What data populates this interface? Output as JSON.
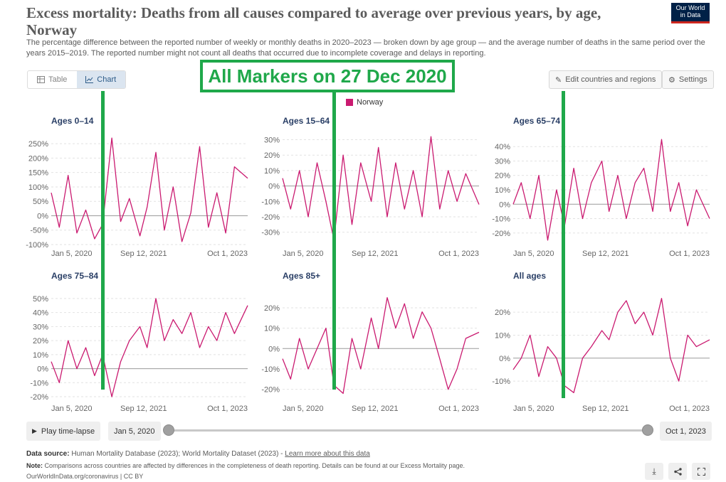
{
  "header": {
    "title": "Excess mortality: Deaths from all causes compared to average over previous years, by age, Norway",
    "subtitle": "The percentage difference between the reported number of weekly or monthly deaths in 2020–2023 — broken down by age group — and the average number of deaths in the same period over the years 2015–2019. The reported number might not count all deaths that occurred due to incomplete coverage and delays in reporting.",
    "logo_line1": "Our World",
    "logo_line2": "in Data"
  },
  "toolbar": {
    "table_label": "Table",
    "chart_label": "Chart",
    "edit_label": "Edit countries and regions",
    "settings_label": "Settings"
  },
  "annotation": {
    "banner": "All Markers on 27 Dec 2020",
    "marker_date": "2020-12-27"
  },
  "legend": {
    "label": "Norway",
    "color": "#ca1a70"
  },
  "chart_data": [
    {
      "type": "line",
      "title": "Ages 0–14",
      "ylim": [
        -100,
        280
      ],
      "yticks": [
        -100,
        -50,
        0,
        50,
        100,
        150,
        200,
        250
      ],
      "ytick_labels": [
        "-100%",
        "-50%",
        "0%",
        "50%",
        "100%",
        "150%",
        "200%",
        "250%"
      ],
      "x_range": [
        "2020-01-05",
        "2023-10-01"
      ],
      "xtick_labels": [
        "Jan 5, 2020",
        "Sep 12, 2021",
        "Oct 1, 2023"
      ],
      "series": [
        {
          "name": "Norway",
          "color": "#ca1a70",
          "x": [
            "2020-01-05",
            "2020-03-01",
            "2020-05-01",
            "2020-07-01",
            "2020-09-01",
            "2020-11-01",
            "2020-12-27",
            "2021-03-01",
            "2021-05-01",
            "2021-07-01",
            "2021-09-12",
            "2021-11-01",
            "2022-01-01",
            "2022-03-01",
            "2022-05-01",
            "2022-07-01",
            "2022-09-01",
            "2022-11-01",
            "2023-01-01",
            "2023-03-01",
            "2023-05-01",
            "2023-07-01",
            "2023-10-01"
          ],
          "values": [
            80,
            -40,
            140,
            -60,
            20,
            -80,
            -30,
            270,
            -20,
            60,
            -70,
            30,
            220,
            -50,
            100,
            -90,
            10,
            240,
            -40,
            80,
            -60,
            170,
            130
          ]
        }
      ]
    },
    {
      "type": "line",
      "title": "Ages 15–64",
      "ylim": [
        -38,
        33
      ],
      "yticks": [
        -30,
        -20,
        -10,
        0,
        10,
        20,
        30
      ],
      "ytick_labels": [
        "-30%",
        "-20%",
        "-10%",
        "0%",
        "10%",
        "20%",
        "30%"
      ],
      "x_range": [
        "2020-01-05",
        "2023-10-01"
      ],
      "xtick_labels": [
        "Jan 5, 2020",
        "Sep 12, 2021",
        "Oct 1, 2023"
      ],
      "series": [
        {
          "name": "Norway",
          "color": "#ca1a70",
          "x": [
            "2020-01-05",
            "2020-03-01",
            "2020-05-01",
            "2020-07-01",
            "2020-09-01",
            "2020-11-01",
            "2020-12-27",
            "2021-03-01",
            "2021-05-01",
            "2021-07-01",
            "2021-09-12",
            "2021-11-01",
            "2022-01-01",
            "2022-03-01",
            "2022-05-01",
            "2022-07-01",
            "2022-09-01",
            "2022-11-01",
            "2023-01-01",
            "2023-03-01",
            "2023-05-01",
            "2023-07-01",
            "2023-10-01"
          ],
          "values": [
            5,
            -15,
            10,
            -20,
            15,
            -10,
            -35,
            20,
            -25,
            15,
            -10,
            25,
            -20,
            15,
            -15,
            10,
            -20,
            32,
            -15,
            10,
            -10,
            8,
            -12
          ]
        }
      ]
    },
    {
      "type": "line",
      "title": "Ages 65–74",
      "ylim": [
        -28,
        48
      ],
      "yticks": [
        -20,
        -10,
        0,
        10,
        20,
        30,
        40
      ],
      "ytick_labels": [
        "-20%",
        "-10%",
        "0%",
        "10%",
        "20%",
        "30%",
        "40%"
      ],
      "x_range": [
        "2020-01-05",
        "2023-10-01"
      ],
      "xtick_labels": [
        "Jan 5, 2020",
        "Sep 12, 2021",
        "Oct 1, 2023"
      ],
      "series": [
        {
          "name": "Norway",
          "color": "#ca1a70",
          "x": [
            "2020-01-05",
            "2020-03-01",
            "2020-05-01",
            "2020-07-01",
            "2020-09-01",
            "2020-11-01",
            "2020-12-27",
            "2021-03-01",
            "2021-05-01",
            "2021-07-01",
            "2021-09-12",
            "2021-11-01",
            "2022-01-01",
            "2022-03-01",
            "2022-05-01",
            "2022-07-01",
            "2022-09-01",
            "2022-11-01",
            "2023-01-01",
            "2023-03-01",
            "2023-05-01",
            "2023-07-01",
            "2023-10-01"
          ],
          "values": [
            0,
            15,
            -10,
            20,
            -25,
            10,
            -15,
            25,
            -10,
            15,
            30,
            -5,
            20,
            -10,
            15,
            25,
            -5,
            45,
            -5,
            15,
            -15,
            10,
            -10
          ]
        }
      ]
    },
    {
      "type": "line",
      "title": "Ages 75–84",
      "ylim": [
        -22,
        55
      ],
      "yticks": [
        -20,
        -10,
        0,
        10,
        20,
        30,
        40,
        50
      ],
      "ytick_labels": [
        "-20%",
        "-10%",
        "0%",
        "10%",
        "20%",
        "30%",
        "40%",
        "50%"
      ],
      "x_range": [
        "2020-01-05",
        "2023-10-01"
      ],
      "xtick_labels": [
        "Jan 5, 2020",
        "Sep 12, 2021",
        "Oct 1, 2023"
      ],
      "series": [
        {
          "name": "Norway",
          "color": "#ca1a70",
          "x": [
            "2020-01-05",
            "2020-03-01",
            "2020-05-01",
            "2020-07-01",
            "2020-09-01",
            "2020-11-01",
            "2020-12-27",
            "2021-03-01",
            "2021-05-01",
            "2021-07-01",
            "2021-09-12",
            "2021-11-01",
            "2022-01-01",
            "2022-03-01",
            "2022-05-01",
            "2022-07-01",
            "2022-09-01",
            "2022-11-01",
            "2023-01-01",
            "2023-03-01",
            "2023-05-01",
            "2023-07-01",
            "2023-10-01"
          ],
          "values": [
            5,
            -10,
            20,
            0,
            15,
            -5,
            10,
            -20,
            5,
            20,
            30,
            15,
            50,
            20,
            35,
            25,
            40,
            15,
            30,
            20,
            40,
            25,
            45
          ]
        }
      ]
    },
    {
      "type": "line",
      "title": "Ages 85+",
      "ylim": [
        -25,
        28
      ],
      "yticks": [
        -20,
        -10,
        0,
        10,
        20
      ],
      "ytick_labels": [
        "-20%",
        "-10%",
        "0%",
        "10%",
        "20%"
      ],
      "x_range": [
        "2020-01-05",
        "2023-10-01"
      ],
      "xtick_labels": [
        "Jan 5, 2020",
        "Sep 12, 2021",
        "Oct 1, 2023"
      ],
      "series": [
        {
          "name": "Norway",
          "color": "#ca1a70",
          "x": [
            "2020-01-05",
            "2020-03-01",
            "2020-05-01",
            "2020-07-01",
            "2020-09-01",
            "2020-11-01",
            "2020-12-27",
            "2021-03-01",
            "2021-05-01",
            "2021-07-01",
            "2021-09-12",
            "2021-11-01",
            "2022-01-01",
            "2022-03-01",
            "2022-05-01",
            "2022-07-01",
            "2022-09-01",
            "2022-11-01",
            "2023-01-01",
            "2023-03-01",
            "2023-05-01",
            "2023-07-01",
            "2023-10-01"
          ],
          "values": [
            -5,
            -15,
            5,
            -10,
            0,
            10,
            -18,
            -22,
            5,
            -10,
            15,
            0,
            25,
            10,
            22,
            5,
            18,
            10,
            -5,
            -20,
            -10,
            5,
            8
          ]
        }
      ]
    },
    {
      "type": "line",
      "title": "All ages",
      "ylim": [
        -18,
        29
      ],
      "yticks": [
        -10,
        0,
        10,
        20
      ],
      "ytick_labels": [
        "-10%",
        "0%",
        "10%",
        "20%"
      ],
      "x_range": [
        "2020-01-05",
        "2023-10-01"
      ],
      "xtick_labels": [
        "Jan 5, 2020",
        "Sep 12, 2021",
        "Oct 1, 2023"
      ],
      "series": [
        {
          "name": "Norway",
          "color": "#ca1a70",
          "x": [
            "2020-01-05",
            "2020-03-01",
            "2020-05-01",
            "2020-07-01",
            "2020-09-01",
            "2020-11-01",
            "2020-12-27",
            "2021-03-01",
            "2021-05-01",
            "2021-07-01",
            "2021-09-12",
            "2021-11-01",
            "2022-01-01",
            "2022-03-01",
            "2022-05-01",
            "2022-07-01",
            "2022-09-01",
            "2022-11-01",
            "2023-01-01",
            "2023-03-01",
            "2023-05-01",
            "2023-07-01",
            "2023-10-01"
          ],
          "values": [
            -5,
            0,
            10,
            -8,
            5,
            0,
            -12,
            -15,
            0,
            5,
            12,
            8,
            20,
            25,
            15,
            20,
            10,
            26,
            0,
            -10,
            10,
            5,
            8
          ]
        }
      ]
    }
  ],
  "timeline": {
    "play_label": "Play time-lapse",
    "start_label": "Jan 5, 2020",
    "end_label": "Oct 1, 2023",
    "start_fraction": 0,
    "end_fraction": 1
  },
  "footer": {
    "source_label": "Data source:",
    "source_text": "Human Mortality Database (2023); World Mortality Dataset (2023) -",
    "source_link": "Learn more about this data",
    "note_label": "Note:",
    "note_text": "Comparisons across countries are affected by differences in the completeness of death reporting. Details can be found at our Excess Mortality page.",
    "credit": "OurWorldInData.org/coronavirus | CC BY"
  }
}
